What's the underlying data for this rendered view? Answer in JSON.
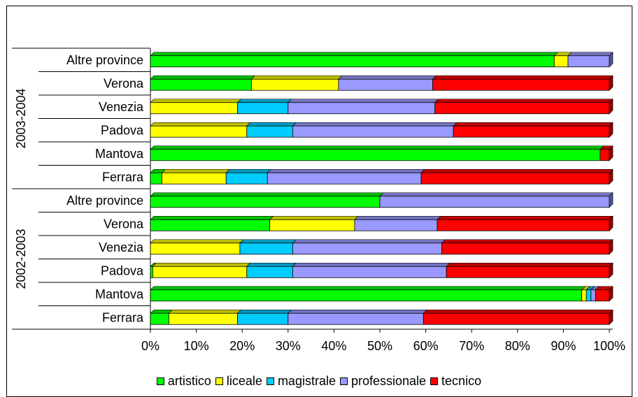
{
  "chart_data": {
    "type": "bar",
    "orientation": "horizontal",
    "stacked": "percent",
    "groups": [
      {
        "label": "2003-2004",
        "categories": [
          "Altre province",
          "Verona",
          "Venezia",
          "Padova",
          "Mantova",
          "Ferrara"
        ]
      },
      {
        "label": "2002-2003",
        "categories": [
          "Altre province",
          "Verona",
          "Venezia",
          "Padova",
          "Mantova",
          "Ferrara"
        ]
      }
    ],
    "series": [
      {
        "name": "artistico",
        "color": "#00ff00",
        "values": [
          88,
          22,
          0,
          0,
          98,
          2.5,
          50,
          26,
          0,
          0.5,
          94,
          4
        ]
      },
      {
        "name": "liceale",
        "color": "#ffff00",
        "values": [
          3,
          19,
          19,
          21,
          0,
          14,
          0,
          18.5,
          19.5,
          20.5,
          1,
          15
        ]
      },
      {
        "name": "magistrale",
        "color": "#00ccff",
        "values": [
          0,
          0,
          11,
          10,
          0,
          9,
          0,
          0,
          11.5,
          10,
          1,
          11
        ]
      },
      {
        "name": "professionale",
        "color": "#9999ff",
        "values": [
          9,
          20.5,
          32,
          35,
          0,
          33.5,
          50,
          18,
          32.5,
          33.5,
          1,
          29.5
        ]
      },
      {
        "name": "tecnico",
        "color": "#ff0000",
        "values": [
          0,
          38.5,
          38,
          34,
          2,
          41,
          0,
          37.5,
          36.5,
          35.5,
          3,
          40.5
        ]
      }
    ],
    "xlim": [
      0,
      100
    ],
    "x_ticks": [
      "0%",
      "10%",
      "20%",
      "30%",
      "40%",
      "50%",
      "60%",
      "70%",
      "80%",
      "90%",
      "100%"
    ],
    "legend_position": "bottom",
    "grid": false
  }
}
